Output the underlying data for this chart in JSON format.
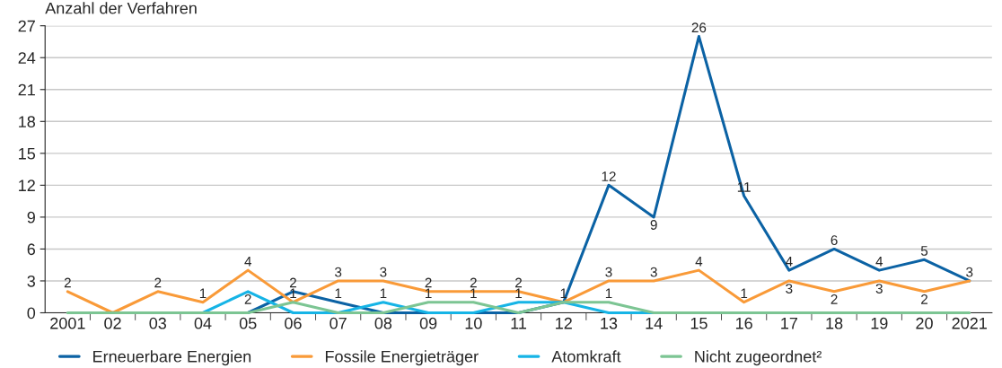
{
  "chart_data": {
    "type": "line",
    "ylabel": "Anzahl der Verfahren",
    "categories": [
      "2001",
      "02",
      "03",
      "04",
      "05",
      "06",
      "07",
      "08",
      "09",
      "10",
      "11",
      "12",
      "13",
      "14",
      "15",
      "16",
      "17",
      "18",
      "19",
      "20",
      "2021"
    ],
    "series": [
      {
        "name": "Erneuerbare Energien",
        "color": "#0b62a4",
        "values": [
          null,
          null,
          null,
          0,
          0,
          2,
          1,
          0,
          0,
          0,
          0,
          1,
          12,
          9,
          26,
          11,
          4,
          6,
          4,
          5,
          3
        ],
        "value_labels": [
          null,
          null,
          null,
          null,
          null,
          "2",
          "1",
          null,
          null,
          null,
          null,
          "1",
          "12",
          "9",
          "26",
          "11",
          "4",
          "6",
          "4",
          "5",
          "3"
        ]
      },
      {
        "name": "Fossile Energieträger",
        "color": "#f99a38",
        "values": [
          2,
          0,
          2,
          1,
          4,
          1,
          3,
          3,
          2,
          2,
          2,
          1,
          3,
          3,
          4,
          1,
          3,
          2,
          3,
          2,
          3
        ],
        "value_labels": [
          "2",
          null,
          "2",
          "1",
          "4",
          null,
          "3",
          "3",
          "2",
          "2",
          "2",
          null,
          "3",
          "3",
          "4",
          "1",
          "3",
          "2",
          "3",
          "2",
          null
        ]
      },
      {
        "name": "Atomkraft",
        "color": "#16b4e6",
        "values": [
          null,
          null,
          0,
          0,
          2,
          0,
          0,
          1,
          0,
          0,
          1,
          1,
          0,
          0,
          null,
          null,
          null,
          null,
          null,
          null,
          null
        ],
        "value_labels": [
          null,
          null,
          null,
          null,
          "2",
          null,
          null,
          "1",
          null,
          null,
          "1",
          null,
          null,
          null,
          null,
          null,
          null,
          null,
          null,
          null,
          null
        ]
      },
      {
        "name": "Nicht zugeordnet²",
        "color": "#7cc593",
        "values": [
          0,
          0,
          0,
          0,
          0,
          1,
          0,
          0,
          1,
          1,
          0,
          1,
          1,
          0,
          0,
          0,
          0,
          0,
          0,
          0,
          0
        ],
        "value_labels": [
          null,
          null,
          null,
          null,
          null,
          "1",
          null,
          null,
          "1",
          "1",
          null,
          null,
          "1",
          null,
          null,
          null,
          null,
          null,
          null,
          null,
          null
        ]
      }
    ],
    "ylim": [
      0,
      27
    ],
    "yticks": [
      0,
      3,
      6,
      9,
      12,
      15,
      18,
      21,
      24,
      27
    ],
    "grid": "y",
    "legend": "bottom",
    "marker": "none",
    "line_style": "solid"
  }
}
